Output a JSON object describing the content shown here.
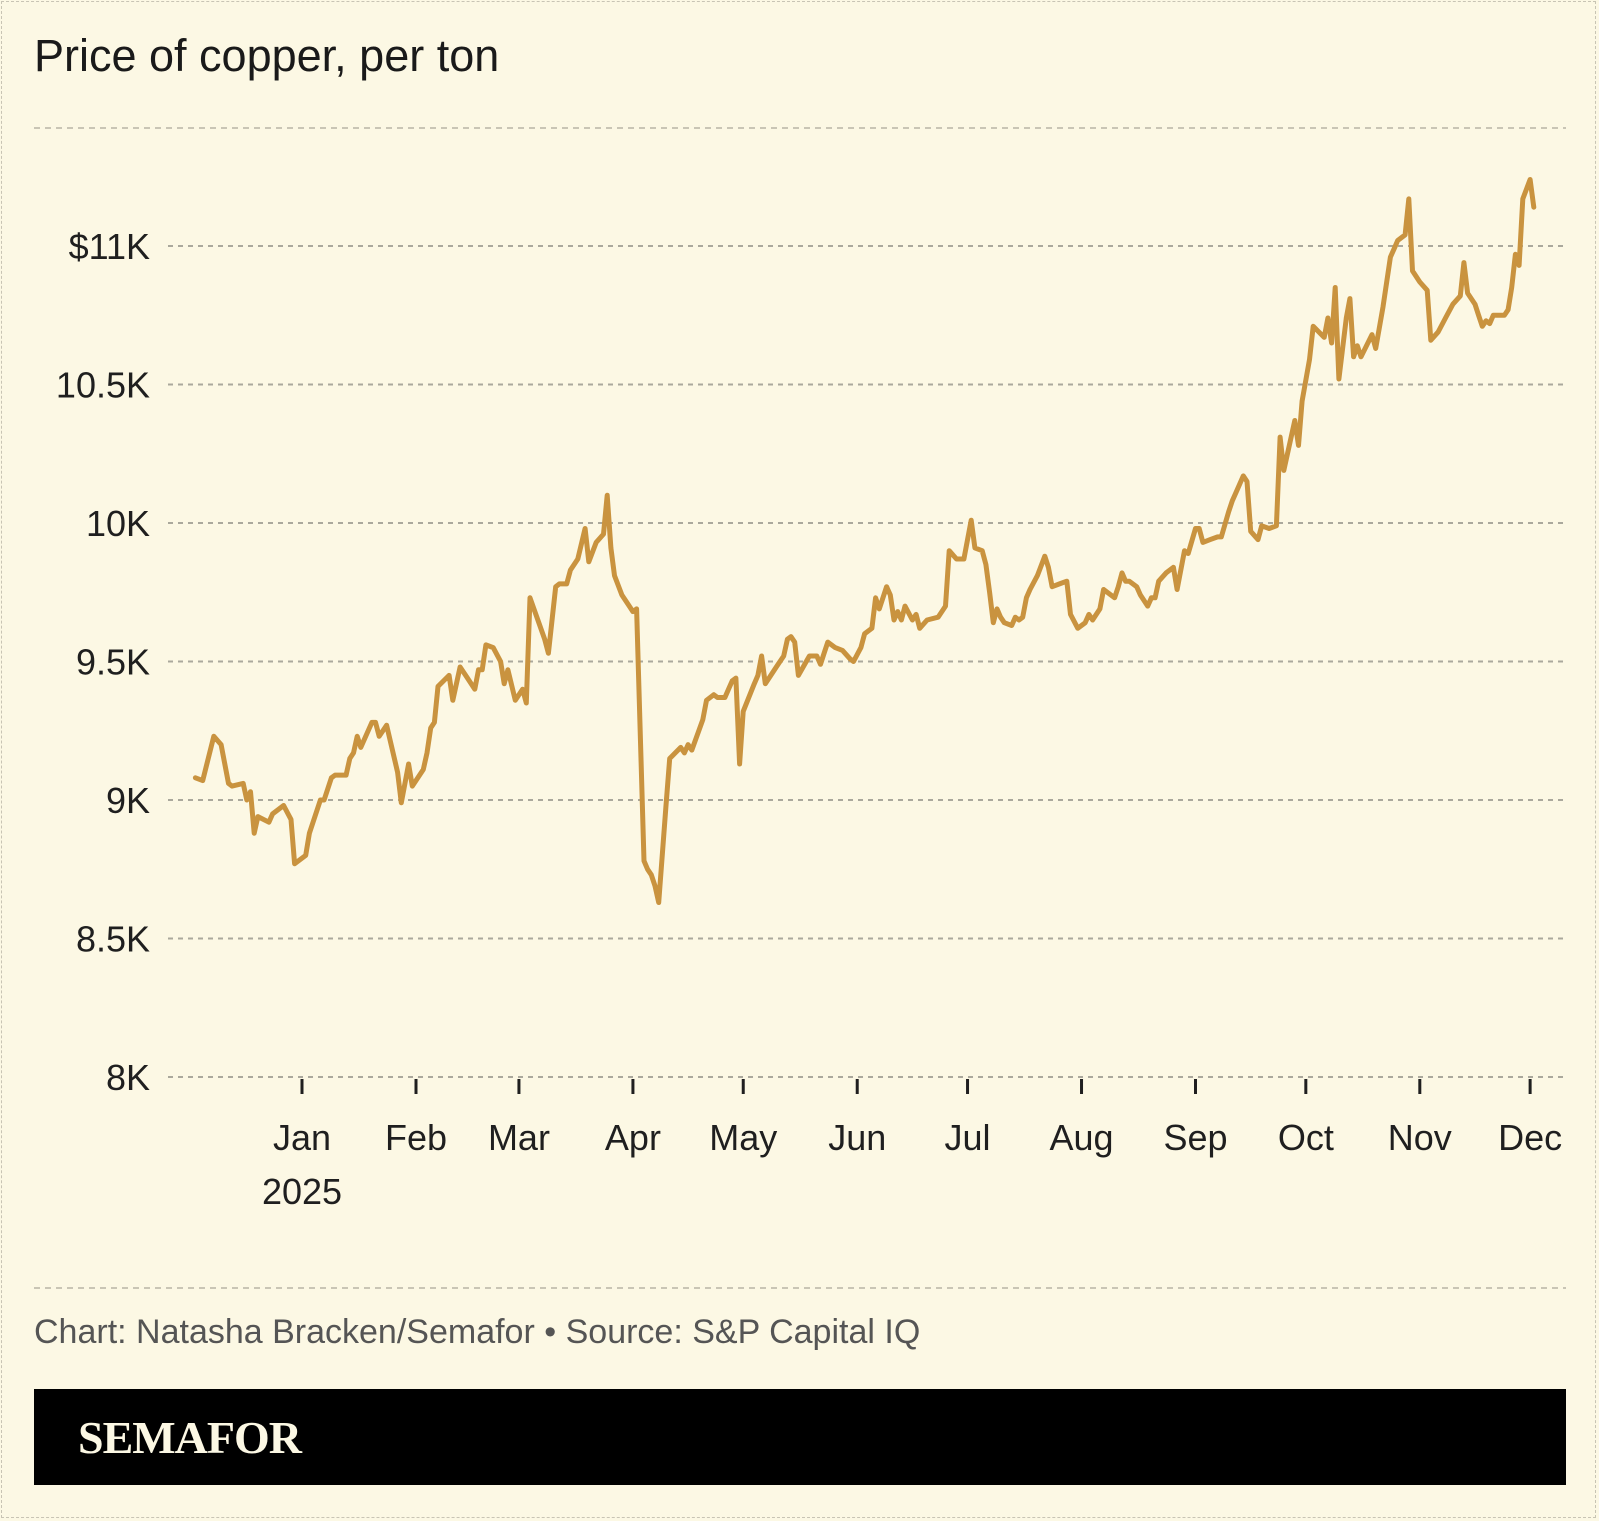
{
  "title": "Price of copper, per ton",
  "footer": {
    "credit": "Chart: Natasha Bracken/Semafor",
    "separator": "•",
    "source": "Source: S&P Capital IQ"
  },
  "brand": "SEMAFOR",
  "chart_data": {
    "type": "line",
    "title": "Price of copper, per ton",
    "xlabel": "",
    "ylabel": "",
    "ylim": [
      8000,
      11500
    ],
    "grid": true,
    "line_color": "#c9933f",
    "background": "#fcf8e4",
    "y_ticks": [
      {
        "value": 8000,
        "label": "8K"
      },
      {
        "value": 8500,
        "label": "8.5K"
      },
      {
        "value": 9000,
        "label": "9K"
      },
      {
        "value": 9500,
        "label": "9.5K"
      },
      {
        "value": 10000,
        "label": "10K"
      },
      {
        "value": 10500,
        "label": "10.5K"
      },
      {
        "value": 11000,
        "label": "$11K"
      }
    ],
    "x_ticks": [
      {
        "date": "2025-01-01",
        "label": "Jan",
        "sublabel": "2025"
      },
      {
        "date": "2025-02-01",
        "label": "Feb"
      },
      {
        "date": "2025-03-01",
        "label": "Mar"
      },
      {
        "date": "2025-04-01",
        "label": "Apr"
      },
      {
        "date": "2025-05-01",
        "label": "May"
      },
      {
        "date": "2025-06-01",
        "label": "Jun"
      },
      {
        "date": "2025-07-01",
        "label": "Jul"
      },
      {
        "date": "2025-08-01",
        "label": "Aug"
      },
      {
        "date": "2025-09-01",
        "label": "Sep"
      },
      {
        "date": "2025-10-01",
        "label": "Oct"
      },
      {
        "date": "2025-11-01",
        "label": "Nov"
      },
      {
        "date": "2025-12-01",
        "label": "Dec"
      }
    ],
    "series": [
      {
        "data": [
          [
            "2024-12-03",
            9080
          ],
          [
            "2024-12-05",
            9070
          ],
          [
            "2024-12-08",
            9230
          ],
          [
            "2024-12-10",
            9200
          ],
          [
            "2024-12-12",
            9060
          ],
          [
            "2024-12-13",
            9050
          ],
          [
            "2024-12-16",
            9060
          ],
          [
            "2024-12-17",
            9000
          ],
          [
            "2024-12-18",
            9030
          ],
          [
            "2024-12-19",
            8880
          ],
          [
            "2024-12-20",
            8940
          ],
          [
            "2024-12-23",
            8920
          ],
          [
            "2024-12-24",
            8950
          ],
          [
            "2024-12-27",
            8980
          ],
          [
            "2024-12-29",
            8930
          ],
          [
            "2024-12-30",
            8770
          ],
          [
            "2025-01-02",
            8800
          ],
          [
            "2025-01-03",
            8880
          ],
          [
            "2025-01-06",
            9000
          ],
          [
            "2025-01-07",
            9000
          ],
          [
            "2025-01-09",
            9080
          ],
          [
            "2025-01-10",
            9090
          ],
          [
            "2025-01-13",
            9090
          ],
          [
            "2025-01-14",
            9150
          ],
          [
            "2025-01-15",
            9170
          ],
          [
            "2025-01-16",
            9230
          ],
          [
            "2025-01-17",
            9190
          ],
          [
            "2025-01-20",
            9280
          ],
          [
            "2025-01-21",
            9280
          ],
          [
            "2025-01-22",
            9230
          ],
          [
            "2025-01-24",
            9270
          ],
          [
            "2025-01-27",
            9100
          ],
          [
            "2025-01-28",
            8990
          ],
          [
            "2025-01-30",
            9130
          ],
          [
            "2025-01-31",
            9050
          ],
          [
            "2025-02-03",
            9110
          ],
          [
            "2025-02-04",
            9170
          ],
          [
            "2025-02-05",
            9260
          ],
          [
            "2025-02-06",
            9280
          ],
          [
            "2025-02-07",
            9410
          ],
          [
            "2025-02-10",
            9450
          ],
          [
            "2025-02-11",
            9360
          ],
          [
            "2025-02-13",
            9480
          ],
          [
            "2025-02-15",
            9440
          ],
          [
            "2025-02-17",
            9400
          ],
          [
            "2025-02-18",
            9470
          ],
          [
            "2025-02-19",
            9470
          ],
          [
            "2025-02-20",
            9560
          ],
          [
            "2025-02-22",
            9550
          ],
          [
            "2025-02-24",
            9500
          ],
          [
            "2025-02-25",
            9420
          ],
          [
            "2025-02-26",
            9470
          ],
          [
            "2025-02-28",
            9360
          ],
          [
            "2025-03-02",
            9400
          ],
          [
            "2025-03-03",
            9350
          ],
          [
            "2025-03-04",
            9730
          ],
          [
            "2025-03-08",
            9580
          ],
          [
            "2025-03-09",
            9530
          ],
          [
            "2025-03-11",
            9770
          ],
          [
            "2025-03-12",
            9780
          ],
          [
            "2025-03-14",
            9780
          ],
          [
            "2025-03-15",
            9830
          ],
          [
            "2025-03-17",
            9870
          ],
          [
            "2025-03-19",
            9980
          ],
          [
            "2025-03-20",
            9860
          ],
          [
            "2025-03-22",
            9930
          ],
          [
            "2025-03-24",
            9960
          ],
          [
            "2025-03-25",
            10100
          ],
          [
            "2025-03-26",
            9910
          ],
          [
            "2025-03-27",
            9810
          ],
          [
            "2025-03-29",
            9740
          ],
          [
            "2025-03-31",
            9700
          ],
          [
            "2025-04-01",
            9680
          ],
          [
            "2025-04-02",
            9690
          ],
          [
            "2025-04-04",
            8780
          ],
          [
            "2025-04-05",
            8750
          ],
          [
            "2025-04-06",
            8730
          ],
          [
            "2025-04-07",
            8690
          ],
          [
            "2025-04-08",
            8630
          ],
          [
            "2025-04-10",
            8980
          ],
          [
            "2025-04-11",
            9150
          ],
          [
            "2025-04-14",
            9190
          ],
          [
            "2025-04-15",
            9170
          ],
          [
            "2025-04-16",
            9200
          ],
          [
            "2025-04-17",
            9180
          ],
          [
            "2025-04-20",
            9290
          ],
          [
            "2025-04-21",
            9360
          ],
          [
            "2025-04-23",
            9380
          ],
          [
            "2025-04-24",
            9370
          ],
          [
            "2025-04-26",
            9370
          ],
          [
            "2025-04-27",
            9400
          ],
          [
            "2025-04-28",
            9430
          ],
          [
            "2025-04-29",
            9440
          ],
          [
            "2025-04-30",
            9130
          ],
          [
            "2025-05-01",
            9320
          ],
          [
            "2025-05-04",
            9420
          ],
          [
            "2025-05-05",
            9450
          ],
          [
            "2025-05-06",
            9520
          ],
          [
            "2025-05-07",
            9420
          ],
          [
            "2025-05-08",
            9440
          ],
          [
            "2025-05-10",
            9480
          ],
          [
            "2025-05-12",
            9520
          ],
          [
            "2025-05-13",
            9580
          ],
          [
            "2025-05-14",
            9590
          ],
          [
            "2025-05-15",
            9570
          ],
          [
            "2025-05-16",
            9450
          ],
          [
            "2025-05-19",
            9520
          ],
          [
            "2025-05-21",
            9520
          ],
          [
            "2025-05-22",
            9490
          ],
          [
            "2025-05-23",
            9530
          ],
          [
            "2025-05-24",
            9570
          ],
          [
            "2025-05-26",
            9550
          ],
          [
            "2025-05-28",
            9540
          ],
          [
            "2025-05-30",
            9510
          ],
          [
            "2025-05-31",
            9500
          ],
          [
            "2025-06-02",
            9550
          ],
          [
            "2025-06-03",
            9600
          ],
          [
            "2025-06-05",
            9620
          ],
          [
            "2025-06-06",
            9730
          ],
          [
            "2025-06-07",
            9690
          ],
          [
            "2025-06-09",
            9770
          ],
          [
            "2025-06-10",
            9740
          ],
          [
            "2025-06-11",
            9650
          ],
          [
            "2025-06-12",
            9680
          ],
          [
            "2025-06-13",
            9650
          ],
          [
            "2025-06-14",
            9700
          ],
          [
            "2025-06-16",
            9650
          ],
          [
            "2025-06-17",
            9670
          ],
          [
            "2025-06-18",
            9620
          ],
          [
            "2025-06-20",
            9650
          ],
          [
            "2025-06-23",
            9660
          ],
          [
            "2025-06-25",
            9700
          ],
          [
            "2025-06-26",
            9900
          ],
          [
            "2025-06-28",
            9870
          ],
          [
            "2025-06-30",
            9870
          ],
          [
            "2025-07-02",
            10010
          ],
          [
            "2025-07-03",
            9910
          ],
          [
            "2025-07-05",
            9900
          ],
          [
            "2025-07-06",
            9850
          ],
          [
            "2025-07-07",
            9750
          ],
          [
            "2025-07-08",
            9640
          ],
          [
            "2025-07-09",
            9690
          ],
          [
            "2025-07-10",
            9660
          ],
          [
            "2025-07-11",
            9640
          ],
          [
            "2025-07-13",
            9630
          ],
          [
            "2025-07-14",
            9660
          ],
          [
            "2025-07-15",
            9650
          ],
          [
            "2025-07-16",
            9660
          ],
          [
            "2025-07-17",
            9730
          ],
          [
            "2025-07-18",
            9760
          ],
          [
            "2025-07-20",
            9810
          ],
          [
            "2025-07-22",
            9880
          ],
          [
            "2025-07-23",
            9840
          ],
          [
            "2025-07-24",
            9770
          ],
          [
            "2025-07-26",
            9780
          ],
          [
            "2025-07-28",
            9790
          ],
          [
            "2025-07-29",
            9670
          ],
          [
            "2025-07-31",
            9620
          ],
          [
            "2025-08-02",
            9640
          ],
          [
            "2025-08-03",
            9670
          ],
          [
            "2025-08-04",
            9650
          ],
          [
            "2025-08-06",
            9690
          ],
          [
            "2025-08-07",
            9760
          ],
          [
            "2025-08-09",
            9740
          ],
          [
            "2025-08-10",
            9730
          ],
          [
            "2025-08-11",
            9770
          ],
          [
            "2025-08-12",
            9820
          ],
          [
            "2025-08-13",
            9790
          ],
          [
            "2025-08-14",
            9790
          ],
          [
            "2025-08-16",
            9770
          ],
          [
            "2025-08-17",
            9740
          ],
          [
            "2025-08-19",
            9700
          ],
          [
            "2025-08-20",
            9730
          ],
          [
            "2025-08-21",
            9730
          ],
          [
            "2025-08-22",
            9790
          ],
          [
            "2025-08-24",
            9820
          ],
          [
            "2025-08-26",
            9840
          ],
          [
            "2025-08-27",
            9760
          ],
          [
            "2025-08-29",
            9900
          ],
          [
            "2025-08-30",
            9890
          ],
          [
            "2025-09-01",
            9980
          ],
          [
            "2025-09-02",
            9980
          ],
          [
            "2025-09-03",
            9930
          ],
          [
            "2025-09-05",
            9940
          ],
          [
            "2025-09-07",
            9950
          ],
          [
            "2025-09-08",
            9950
          ],
          [
            "2025-09-10",
            10040
          ],
          [
            "2025-09-11",
            10080
          ],
          [
            "2025-09-12",
            10110
          ],
          [
            "2025-09-14",
            10170
          ],
          [
            "2025-09-15",
            10150
          ],
          [
            "2025-09-16",
            9970
          ],
          [
            "2025-09-18",
            9940
          ],
          [
            "2025-09-19",
            9990
          ],
          [
            "2025-09-21",
            9980
          ],
          [
            "2025-09-23",
            9990
          ],
          [
            "2025-09-24",
            10310
          ],
          [
            "2025-09-25",
            10190
          ],
          [
            "2025-09-28",
            10370
          ],
          [
            "2025-09-29",
            10280
          ],
          [
            "2025-09-30",
            10440
          ],
          [
            "2025-10-02",
            10590
          ],
          [
            "2025-10-03",
            10710
          ],
          [
            "2025-10-06",
            10670
          ],
          [
            "2025-10-07",
            10740
          ],
          [
            "2025-10-08",
            10650
          ],
          [
            "2025-10-09",
            10850
          ],
          [
            "2025-10-10",
            10520
          ],
          [
            "2025-10-12",
            10740
          ],
          [
            "2025-10-13",
            10810
          ],
          [
            "2025-10-14",
            10600
          ],
          [
            "2025-10-15",
            10640
          ],
          [
            "2025-10-16",
            10600
          ],
          [
            "2025-10-19",
            10680
          ],
          [
            "2025-10-20",
            10630
          ],
          [
            "2025-10-22",
            10780
          ],
          [
            "2025-10-24",
            10960
          ],
          [
            "2025-10-25",
            10990
          ],
          [
            "2025-10-26",
            11020
          ],
          [
            "2025-10-28",
            11040
          ],
          [
            "2025-10-29",
            11170
          ],
          [
            "2025-10-30",
            10910
          ],
          [
            "2025-11-01",
            10870
          ],
          [
            "2025-11-03",
            10840
          ],
          [
            "2025-11-04",
            10660
          ],
          [
            "2025-11-06",
            10690
          ],
          [
            "2025-11-08",
            10740
          ],
          [
            "2025-11-10",
            10790
          ],
          [
            "2025-11-12",
            10820
          ],
          [
            "2025-11-13",
            10940
          ],
          [
            "2025-11-14",
            10830
          ],
          [
            "2025-11-16",
            10790
          ],
          [
            "2025-11-17",
            10750
          ],
          [
            "2025-11-18",
            10710
          ],
          [
            "2025-11-19",
            10730
          ],
          [
            "2025-11-20",
            10720
          ],
          [
            "2025-11-21",
            10750
          ],
          [
            "2025-11-24",
            10750
          ],
          [
            "2025-11-25",
            10770
          ],
          [
            "2025-11-26",
            10850
          ],
          [
            "2025-11-27",
            10970
          ],
          [
            "2025-11-28",
            10930
          ],
          [
            "2025-11-29",
            11170
          ],
          [
            "2025-12-01",
            11240
          ],
          [
            "2025-12-02",
            11140
          ]
        ]
      }
    ]
  }
}
